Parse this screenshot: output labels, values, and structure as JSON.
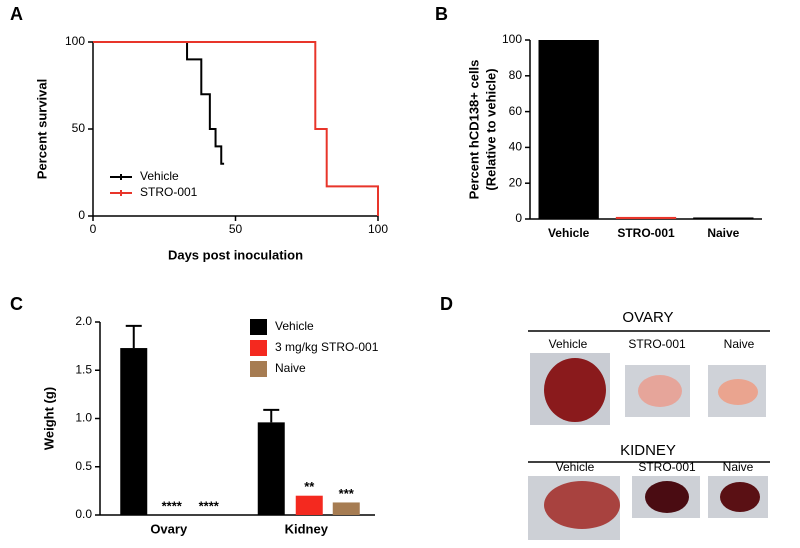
{
  "chart_data": [
    {
      "panel": "A",
      "type": "step",
      "xlabel": "Days post inoculation",
      "ylabel": "Percent survival",
      "xlim": [
        0,
        100
      ],
      "xticks": [
        0,
        50,
        100
      ],
      "ylim": [
        0,
        100
      ],
      "yticks": [
        0,
        50,
        100
      ],
      "series": [
        {
          "name": "Vehicle",
          "color": "#000000",
          "x": [
            0,
            33,
            38,
            41,
            43,
            45,
            46
          ],
          "values": [
            100,
            90,
            70,
            50,
            40,
            30,
            30
          ]
        },
        {
          "name": "STRO-001",
          "color": "#e8352a",
          "x": [
            0,
            78,
            82,
            100
          ],
          "values": [
            100,
            50,
            17,
            0
          ]
        }
      ]
    },
    {
      "panel": "B",
      "type": "bar",
      "ylabel": [
        "Percent hCD138+ cells",
        "(Relative to vehicle)"
      ],
      "categories": [
        "Vehicle",
        "STRO-001",
        "Naive"
      ],
      "values": [
        100,
        0.6,
        0.3
      ],
      "colors": [
        "#000000",
        "#e8352a",
        "#000000"
      ],
      "ylim": [
        0,
        100
      ],
      "yticks": [
        0,
        20,
        40,
        60,
        80,
        100
      ]
    },
    {
      "panel": "C",
      "type": "grouped_bar",
      "ylabel": "Weight (g)",
      "categories": [
        "Ovary",
        "Kidney"
      ],
      "ylim": [
        0,
        2
      ],
      "yticks": [
        {
          "value": 0,
          "label": "0.0"
        },
        {
          "value": 0.5,
          "label": "0.5"
        },
        {
          "value": 1,
          "label": "1.0"
        },
        {
          "value": 1.5,
          "label": "1.5"
        },
        {
          "value": 2,
          "label": "2.0"
        }
      ],
      "series": [
        {
          "name": "Vehicle",
          "color": "#000000",
          "values": [
            1.73,
            0.96
          ],
          "errors": [
            0.23,
            0.13
          ]
        },
        {
          "name": "3 mg/kg STRO-001",
          "color": "#f4291f",
          "values": [
            0,
            0.2
          ],
          "annotations": [
            "****",
            "**"
          ]
        },
        {
          "name": "Naive",
          "color": "#a67c52",
          "values": [
            0,
            0.13
          ],
          "annotations": [
            "****",
            "***"
          ]
        }
      ]
    }
  ],
  "panel_d": {
    "panel": "D",
    "sections": [
      {
        "title": "OVARY",
        "images": [
          "Vehicle",
          "STRO-001",
          "Naive"
        ]
      },
      {
        "title": "KIDNEY",
        "images": [
          "Vehicle",
          "STRO-001",
          "Naive"
        ]
      }
    ]
  }
}
